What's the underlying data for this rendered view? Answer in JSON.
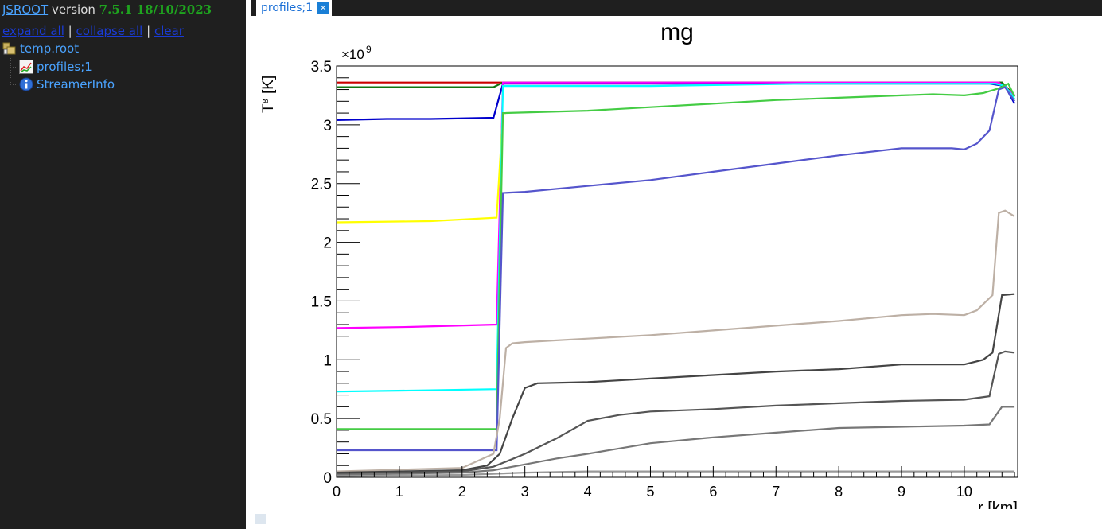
{
  "sidebar": {
    "brand": "JSROOT",
    "version_word": "version",
    "version_number": "7.5.1 18/10/2023",
    "expand_all": "expand all",
    "collapse_all": "collapse all",
    "clear": "clear",
    "sep": "|",
    "tree": [
      {
        "label": "temp.root",
        "icon": "root-file-icon"
      },
      {
        "label": "profiles;1",
        "icon": "multigraph-icon"
      },
      {
        "label": "StreamerInfo",
        "icon": "info-icon"
      }
    ]
  },
  "tab": {
    "label": "profiles;1",
    "close": "×"
  },
  "chart_data": {
    "type": "line",
    "title": "mg",
    "xlabel": "r [km]",
    "ylabel": "T",
    "ylabel_sub": "8",
    "ylabel_unit": "[K]",
    "y_exponent_label": "×10",
    "y_exponent_power": "9",
    "xlim": [
      0,
      10.85
    ],
    "ylim": [
      0,
      3.5
    ],
    "x_ticks": [
      "0",
      "1",
      "2",
      "3",
      "4",
      "5",
      "6",
      "7",
      "8",
      "9",
      "10"
    ],
    "y_ticks": [
      "0",
      "0.5",
      "1",
      "1.5",
      "2",
      "2.5",
      "3",
      "3.5"
    ],
    "series": [
      {
        "color": "#cc0000",
        "points": [
          [
            0,
            3.36
          ],
          [
            2.55,
            3.36
          ],
          [
            2.65,
            3.36
          ],
          [
            10.6,
            3.36
          ],
          [
            10.8,
            3.25
          ]
        ]
      },
      {
        "color": "#117711",
        "points": [
          [
            0,
            3.32
          ],
          [
            0.8,
            3.32
          ],
          [
            2.5,
            3.32
          ],
          [
            2.65,
            3.36
          ],
          [
            10.6,
            3.36
          ],
          [
            10.8,
            3.24
          ]
        ]
      },
      {
        "color": "#0000cc",
        "points": [
          [
            0,
            3.04
          ],
          [
            0.8,
            3.05
          ],
          [
            1.5,
            3.05
          ],
          [
            2.5,
            3.06
          ],
          [
            2.65,
            3.35
          ],
          [
            10.4,
            3.35
          ],
          [
            10.65,
            3.33
          ],
          [
            10.8,
            3.18
          ]
        ]
      },
      {
        "color": "#ff00ff",
        "points": [
          [
            0,
            1.27
          ],
          [
            1.2,
            1.28
          ],
          [
            2.55,
            1.3
          ],
          [
            2.65,
            3.36
          ],
          [
            10.55,
            3.36
          ],
          [
            10.8,
            3.25
          ]
        ]
      },
      {
        "color": "#ffff00",
        "points": [
          [
            0,
            2.17
          ],
          [
            1.5,
            2.18
          ],
          [
            2.55,
            2.21
          ],
          [
            2.65,
            3.1
          ],
          [
            2.7,
            3.1
          ]
        ]
      },
      {
        "color": "#00ffff",
        "points": [
          [
            0,
            0.73
          ],
          [
            1.4,
            0.74
          ],
          [
            2.55,
            0.75
          ],
          [
            2.65,
            3.33
          ],
          [
            5,
            3.33
          ],
          [
            7.5,
            3.35
          ],
          [
            10.5,
            3.35
          ],
          [
            10.65,
            3.33
          ],
          [
            10.8,
            3.22
          ]
        ]
      },
      {
        "color": "#44cc44",
        "points": [
          [
            0,
            0.41
          ],
          [
            2.55,
            0.41
          ],
          [
            2.65,
            3.1
          ],
          [
            4,
            3.12
          ],
          [
            5,
            3.15
          ],
          [
            6,
            3.18
          ],
          [
            7,
            3.21
          ],
          [
            8,
            3.23
          ],
          [
            9,
            3.25
          ],
          [
            9.5,
            3.26
          ],
          [
            10,
            3.25
          ],
          [
            10.3,
            3.27
          ],
          [
            10.55,
            3.31
          ],
          [
            10.7,
            3.35
          ],
          [
            10.8,
            3.24
          ]
        ]
      },
      {
        "color": "#5555cc",
        "points": [
          [
            0,
            0.23
          ],
          [
            2.55,
            0.23
          ],
          [
            2.65,
            2.42
          ],
          [
            3,
            2.43
          ],
          [
            4,
            2.48
          ],
          [
            5,
            2.53
          ],
          [
            6,
            2.6
          ],
          [
            7,
            2.67
          ],
          [
            8,
            2.74
          ],
          [
            9,
            2.8
          ],
          [
            9.8,
            2.8
          ],
          [
            10,
            2.79
          ],
          [
            10.2,
            2.84
          ],
          [
            10.4,
            2.95
          ],
          [
            10.55,
            3.3
          ],
          [
            10.65,
            3.32
          ],
          [
            10.8,
            3.2
          ]
        ]
      },
      {
        "color": "#bdb0a5",
        "points": [
          [
            0,
            0.05
          ],
          [
            2,
            0.08
          ],
          [
            2.5,
            0.2
          ],
          [
            2.6,
            0.5
          ],
          [
            2.7,
            1.1
          ],
          [
            2.8,
            1.14
          ],
          [
            3,
            1.15
          ],
          [
            4,
            1.18
          ],
          [
            5,
            1.21
          ],
          [
            6,
            1.25
          ],
          [
            7,
            1.29
          ],
          [
            8,
            1.33
          ],
          [
            9,
            1.38
          ],
          [
            9.5,
            1.39
          ],
          [
            10,
            1.38
          ],
          [
            10.2,
            1.42
          ],
          [
            10.45,
            1.55
          ],
          [
            10.55,
            2.25
          ],
          [
            10.65,
            2.27
          ],
          [
            10.8,
            2.22
          ]
        ]
      },
      {
        "color": "#444444",
        "points": [
          [
            0,
            0.04
          ],
          [
            2,
            0.06
          ],
          [
            2.4,
            0.1
          ],
          [
            2.6,
            0.2
          ],
          [
            2.8,
            0.5
          ],
          [
            3,
            0.76
          ],
          [
            3.2,
            0.8
          ],
          [
            4,
            0.81
          ],
          [
            5,
            0.84
          ],
          [
            6,
            0.87
          ],
          [
            7,
            0.9
          ],
          [
            8,
            0.92
          ],
          [
            9,
            0.96
          ],
          [
            10,
            0.96
          ],
          [
            10.3,
            1.0
          ],
          [
            10.45,
            1.06
          ],
          [
            10.6,
            1.55
          ],
          [
            10.8,
            1.56
          ]
        ]
      },
      {
        "color": "#555555",
        "points": [
          [
            0,
            0.03
          ],
          [
            2,
            0.05
          ],
          [
            2.5,
            0.09
          ],
          [
            3,
            0.2
          ],
          [
            3.5,
            0.33
          ],
          [
            4,
            0.48
          ],
          [
            4.5,
            0.53
          ],
          [
            5,
            0.56
          ],
          [
            6,
            0.58
          ],
          [
            7,
            0.61
          ],
          [
            8,
            0.63
          ],
          [
            9,
            0.65
          ],
          [
            10,
            0.66
          ],
          [
            10.4,
            0.69
          ],
          [
            10.55,
            1.05
          ],
          [
            10.65,
            1.07
          ],
          [
            10.8,
            1.06
          ]
        ]
      },
      {
        "color": "#777777",
        "points": [
          [
            0,
            0.02
          ],
          [
            2,
            0.04
          ],
          [
            2.5,
            0.06
          ],
          [
            3,
            0.11
          ],
          [
            3.5,
            0.16
          ],
          [
            4,
            0.2
          ],
          [
            5,
            0.29
          ],
          [
            6,
            0.34
          ],
          [
            7,
            0.38
          ],
          [
            8,
            0.42
          ],
          [
            9,
            0.43
          ],
          [
            10,
            0.44
          ],
          [
            10.4,
            0.45
          ],
          [
            10.6,
            0.6
          ],
          [
            10.8,
            0.6
          ]
        ]
      },
      {
        "color": "#999999",
        "points": [
          [
            0,
            0.01
          ],
          [
            2,
            0.02
          ],
          [
            2.5,
            0.03
          ],
          [
            3,
            0.04
          ],
          [
            4,
            0.05
          ],
          [
            5,
            0.05
          ],
          [
            6,
            0.05
          ],
          [
            7,
            0.05
          ],
          [
            8,
            0.05
          ],
          [
            9,
            0.05
          ],
          [
            10,
            0.05
          ],
          [
            10.8,
            0.05
          ]
        ]
      }
    ]
  }
}
